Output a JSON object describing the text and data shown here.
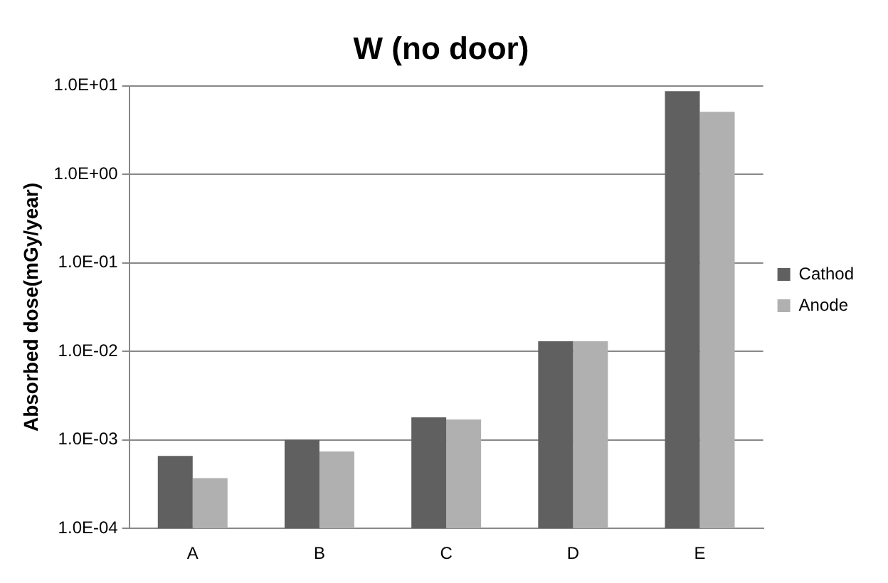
{
  "chart_data": {
    "type": "bar",
    "title": "W (no door)",
    "ylabel": "Absorbed dose(mGy/year)",
    "categories": [
      "A",
      "B",
      "C",
      "D",
      "E"
    ],
    "series": [
      {
        "name": "Cathod",
        "color": "#606060",
        "values": [
          0.00066,
          0.001,
          0.0018,
          0.013,
          8.7
        ]
      },
      {
        "name": "Anode",
        "color": "#b0b0b0",
        "values": [
          0.00037,
          0.00074,
          0.0017,
          0.013,
          5.1
        ]
      }
    ],
    "log": "y",
    "ylim": [
      0.0001,
      10
    ],
    "yticks": [
      {
        "value": 0.0001,
        "label": "1.0E-04"
      },
      {
        "value": 0.001,
        "label": "1.0E-03"
      },
      {
        "value": 0.01,
        "label": "1.0E-02"
      },
      {
        "value": 0.1,
        "label": "1.0E-01"
      },
      {
        "value": 1,
        "label": "1.0E+00"
      },
      {
        "value": 10,
        "label": "1.0E+01"
      }
    ],
    "grid": "y",
    "legend": "right"
  }
}
